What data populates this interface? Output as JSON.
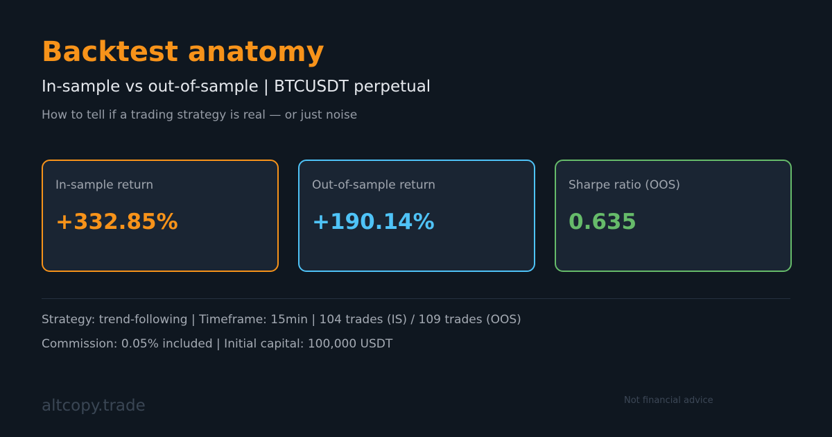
{
  "header": {
    "title": "Backtest anatomy",
    "subtitle": "In-sample vs out-of-sample  |  BTCUSDT perpetual",
    "tagline": "How to tell if a trading strategy is real — or just noise"
  },
  "cards": [
    {
      "label": "In-sample return",
      "value": "+332.85%",
      "accent": "#f7931a"
    },
    {
      "label": "Out-of-sample return",
      "value": "+190.14%",
      "accent": "#4fc3f7"
    },
    {
      "label": "Sharpe ratio (OOS)",
      "value": "0.635",
      "accent": "#66bb6a"
    }
  ],
  "details": [
    "Strategy: trend-following  |  Timeframe: 15min  |  104 trades (IS) / 109 trades (OOS)",
    "Commission: 0.05% included  |  Initial capital: 100,000 USDT"
  ],
  "footer": {
    "brand": "altcopy.trade",
    "disclaimer": "Not financial advice"
  },
  "colors": {
    "background": "#0f1720",
    "card_background": "#1a2533",
    "title": "#f7931a"
  }
}
